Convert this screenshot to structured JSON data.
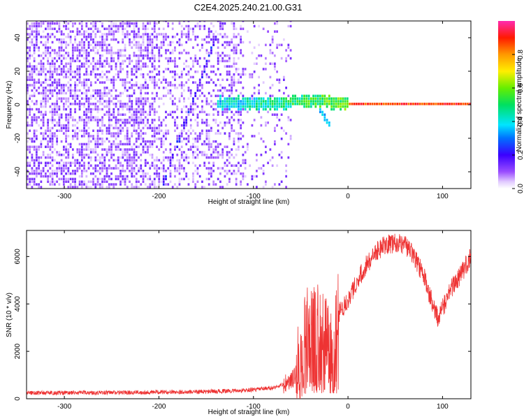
{
  "title": "C2E4.2025.240.21.00.G31",
  "colors": {
    "snr_line": "#ee3333",
    "axes": "#000000",
    "background": "#ffffff"
  },
  "chart_data": [
    {
      "type": "heatmap",
      "xlabel": "Height of straight line (km)",
      "ylabel": "Frequency (Hz)",
      "xlim": [
        -340,
        130
      ],
      "ylim": [
        -50,
        50
      ],
      "xticks": [
        -300,
        -200,
        -100,
        0,
        100
      ],
      "yticks": [
        -40,
        -20,
        0,
        20,
        40
      ],
      "colorbar": {
        "label": "Normalized spectral amplitude",
        "range": [
          0.0,
          1.0
        ],
        "ticks": [
          0.0,
          0.2,
          0.4,
          0.6,
          0.8
        ],
        "tick_labels": [
          "0.0",
          "0.2",
          "0.4",
          "0.6",
          "0.8"
        ],
        "colormap": "rainbow (white-lavender-purple-blue-cyan-green-yellow-orange-red-magenta)"
      },
      "features": [
        {
          "name": "scattered low-amplitude noise",
          "x_range": [
            -340,
            -60
          ],
          "freq_range": [
            -50,
            50
          ],
          "amplitude": 0.1
        },
        {
          "name": "diagonal streak",
          "x": [
            -198,
            -180,
            -160,
            -140
          ],
          "freq": [
            -50,
            -20,
            10,
            40
          ],
          "amplitude": 0.2
        },
        {
          "name": "second streak",
          "x": [
            -30,
            -22
          ],
          "freq": [
            -5,
            -12
          ],
          "amplitude": 0.35
        },
        {
          "name": "signal band",
          "x_range": [
            -140,
            130
          ],
          "freq_center": 0,
          "amplitude_left": 0.4,
          "amplitude_right": 0.9
        }
      ]
    },
    {
      "type": "line",
      "xlabel": "Height of straight line (km)",
      "ylabel": "SNR (10 * v/v)",
      "xlim": [
        -340,
        130
      ],
      "ylim": [
        0,
        7100
      ],
      "xticks": [
        -300,
        -200,
        -100,
        0,
        100
      ],
      "yticks": [
        0,
        2000,
        4000,
        6000
      ],
      "series": [
        {
          "x": [
            -340,
            -300,
            -250,
            -200,
            -150,
            -110,
            -80,
            -60,
            -50,
            -45,
            -40,
            -30,
            -20,
            -15,
            -10,
            0,
            10,
            20,
            30,
            40,
            50,
            60,
            65,
            70,
            80,
            90,
            95,
            100,
            110,
            120,
            130
          ],
          "values": [
            250,
            250,
            260,
            280,
            300,
            350,
            450,
            700,
            1500,
            2800,
            3200,
            3000,
            2300,
            2800,
            3600,
            4200,
            5000,
            5700,
            6200,
            6500,
            6550,
            6500,
            6300,
            6000,
            5200,
            3900,
            3400,
            3800,
            4700,
            5300,
            6000
          ]
        }
      ]
    }
  ]
}
